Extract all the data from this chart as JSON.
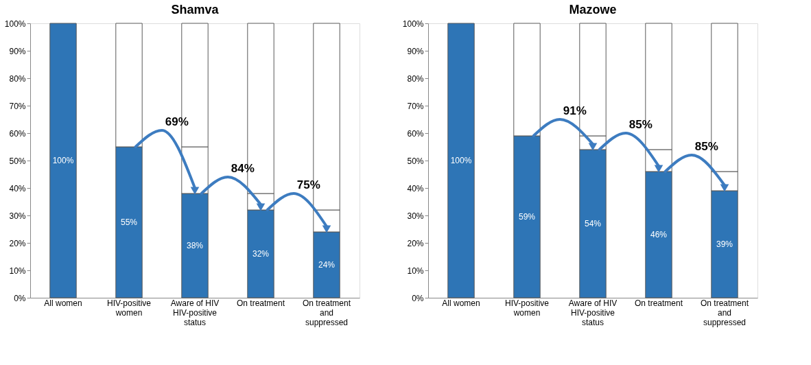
{
  "chart_data": [
    {
      "type": "bar",
      "title": "Shamva",
      "stacked": true,
      "legend": false,
      "grid": false,
      "categories": [
        "All women",
        "HIV-positive women",
        "Aware of HIV HIV-positive status",
        "On treatment",
        "On treatment and suppressed"
      ],
      "series": [
        {
          "color": "#2e75b6",
          "values": [
            100,
            55,
            38,
            32,
            24
          ],
          "value_labels": [
            "100%",
            "55%",
            "38%",
            "32%",
            "24%"
          ]
        },
        {
          "color": "#ffffff",
          "values": [
            null,
            null,
            17,
            6,
            8
          ]
        },
        {
          "color": "#ffffff",
          "values": [
            null,
            45,
            45,
            62,
            68
          ]
        }
      ],
      "ylim": [
        0,
        100
      ],
      "yticks": [
        {
          "value": 0,
          "label": "0%"
        },
        {
          "value": 10,
          "label": "10%"
        },
        {
          "value": 20,
          "label": "20%"
        },
        {
          "value": 30,
          "label": "30%"
        },
        {
          "value": 40,
          "label": "40%"
        },
        {
          "value": 50,
          "label": "50%"
        },
        {
          "value": 60,
          "label": "60%"
        },
        {
          "value": 70,
          "label": "70%"
        },
        {
          "value": 80,
          "label": "80%"
        },
        {
          "value": 90,
          "label": "90%"
        },
        {
          "value": 100,
          "label": "100%"
        }
      ],
      "annotations": [
        "69%",
        "84%",
        "75%"
      ]
    },
    {
      "type": "bar",
      "title": "Mazowe",
      "stacked": true,
      "legend": false,
      "grid": false,
      "categories": [
        "All women",
        "HIV-positive women",
        "Aware of HIV HIV-positive status",
        "On treatment",
        "On treatment and suppressed"
      ],
      "series": [
        {
          "color": "#2e75b6",
          "values": [
            100,
            59,
            54,
            46,
            39
          ],
          "value_labels": [
            "100%",
            "59%",
            "54%",
            "46%",
            "39%"
          ]
        },
        {
          "color": "#ffffff",
          "values": [
            null,
            null,
            5,
            8,
            7
          ]
        },
        {
          "color": "#ffffff",
          "values": [
            null,
            41,
            41,
            46,
            54
          ]
        }
      ],
      "ylim": [
        0,
        100
      ],
      "yticks": [
        {
          "value": 0,
          "label": "0%"
        },
        {
          "value": 10,
          "label": "10%"
        },
        {
          "value": 20,
          "label": "20%"
        },
        {
          "value": 30,
          "label": "30%"
        },
        {
          "value": 40,
          "label": "40%"
        },
        {
          "value": 50,
          "label": "50%"
        },
        {
          "value": 60,
          "label": "60%"
        },
        {
          "value": 70,
          "label": "70%"
        },
        {
          "value": 80,
          "label": "80%"
        },
        {
          "value": 90,
          "label": "90%"
        },
        {
          "value": 100,
          "label": "100%"
        }
      ],
      "annotations": [
        "91%",
        "85%",
        "85%"
      ]
    }
  ]
}
